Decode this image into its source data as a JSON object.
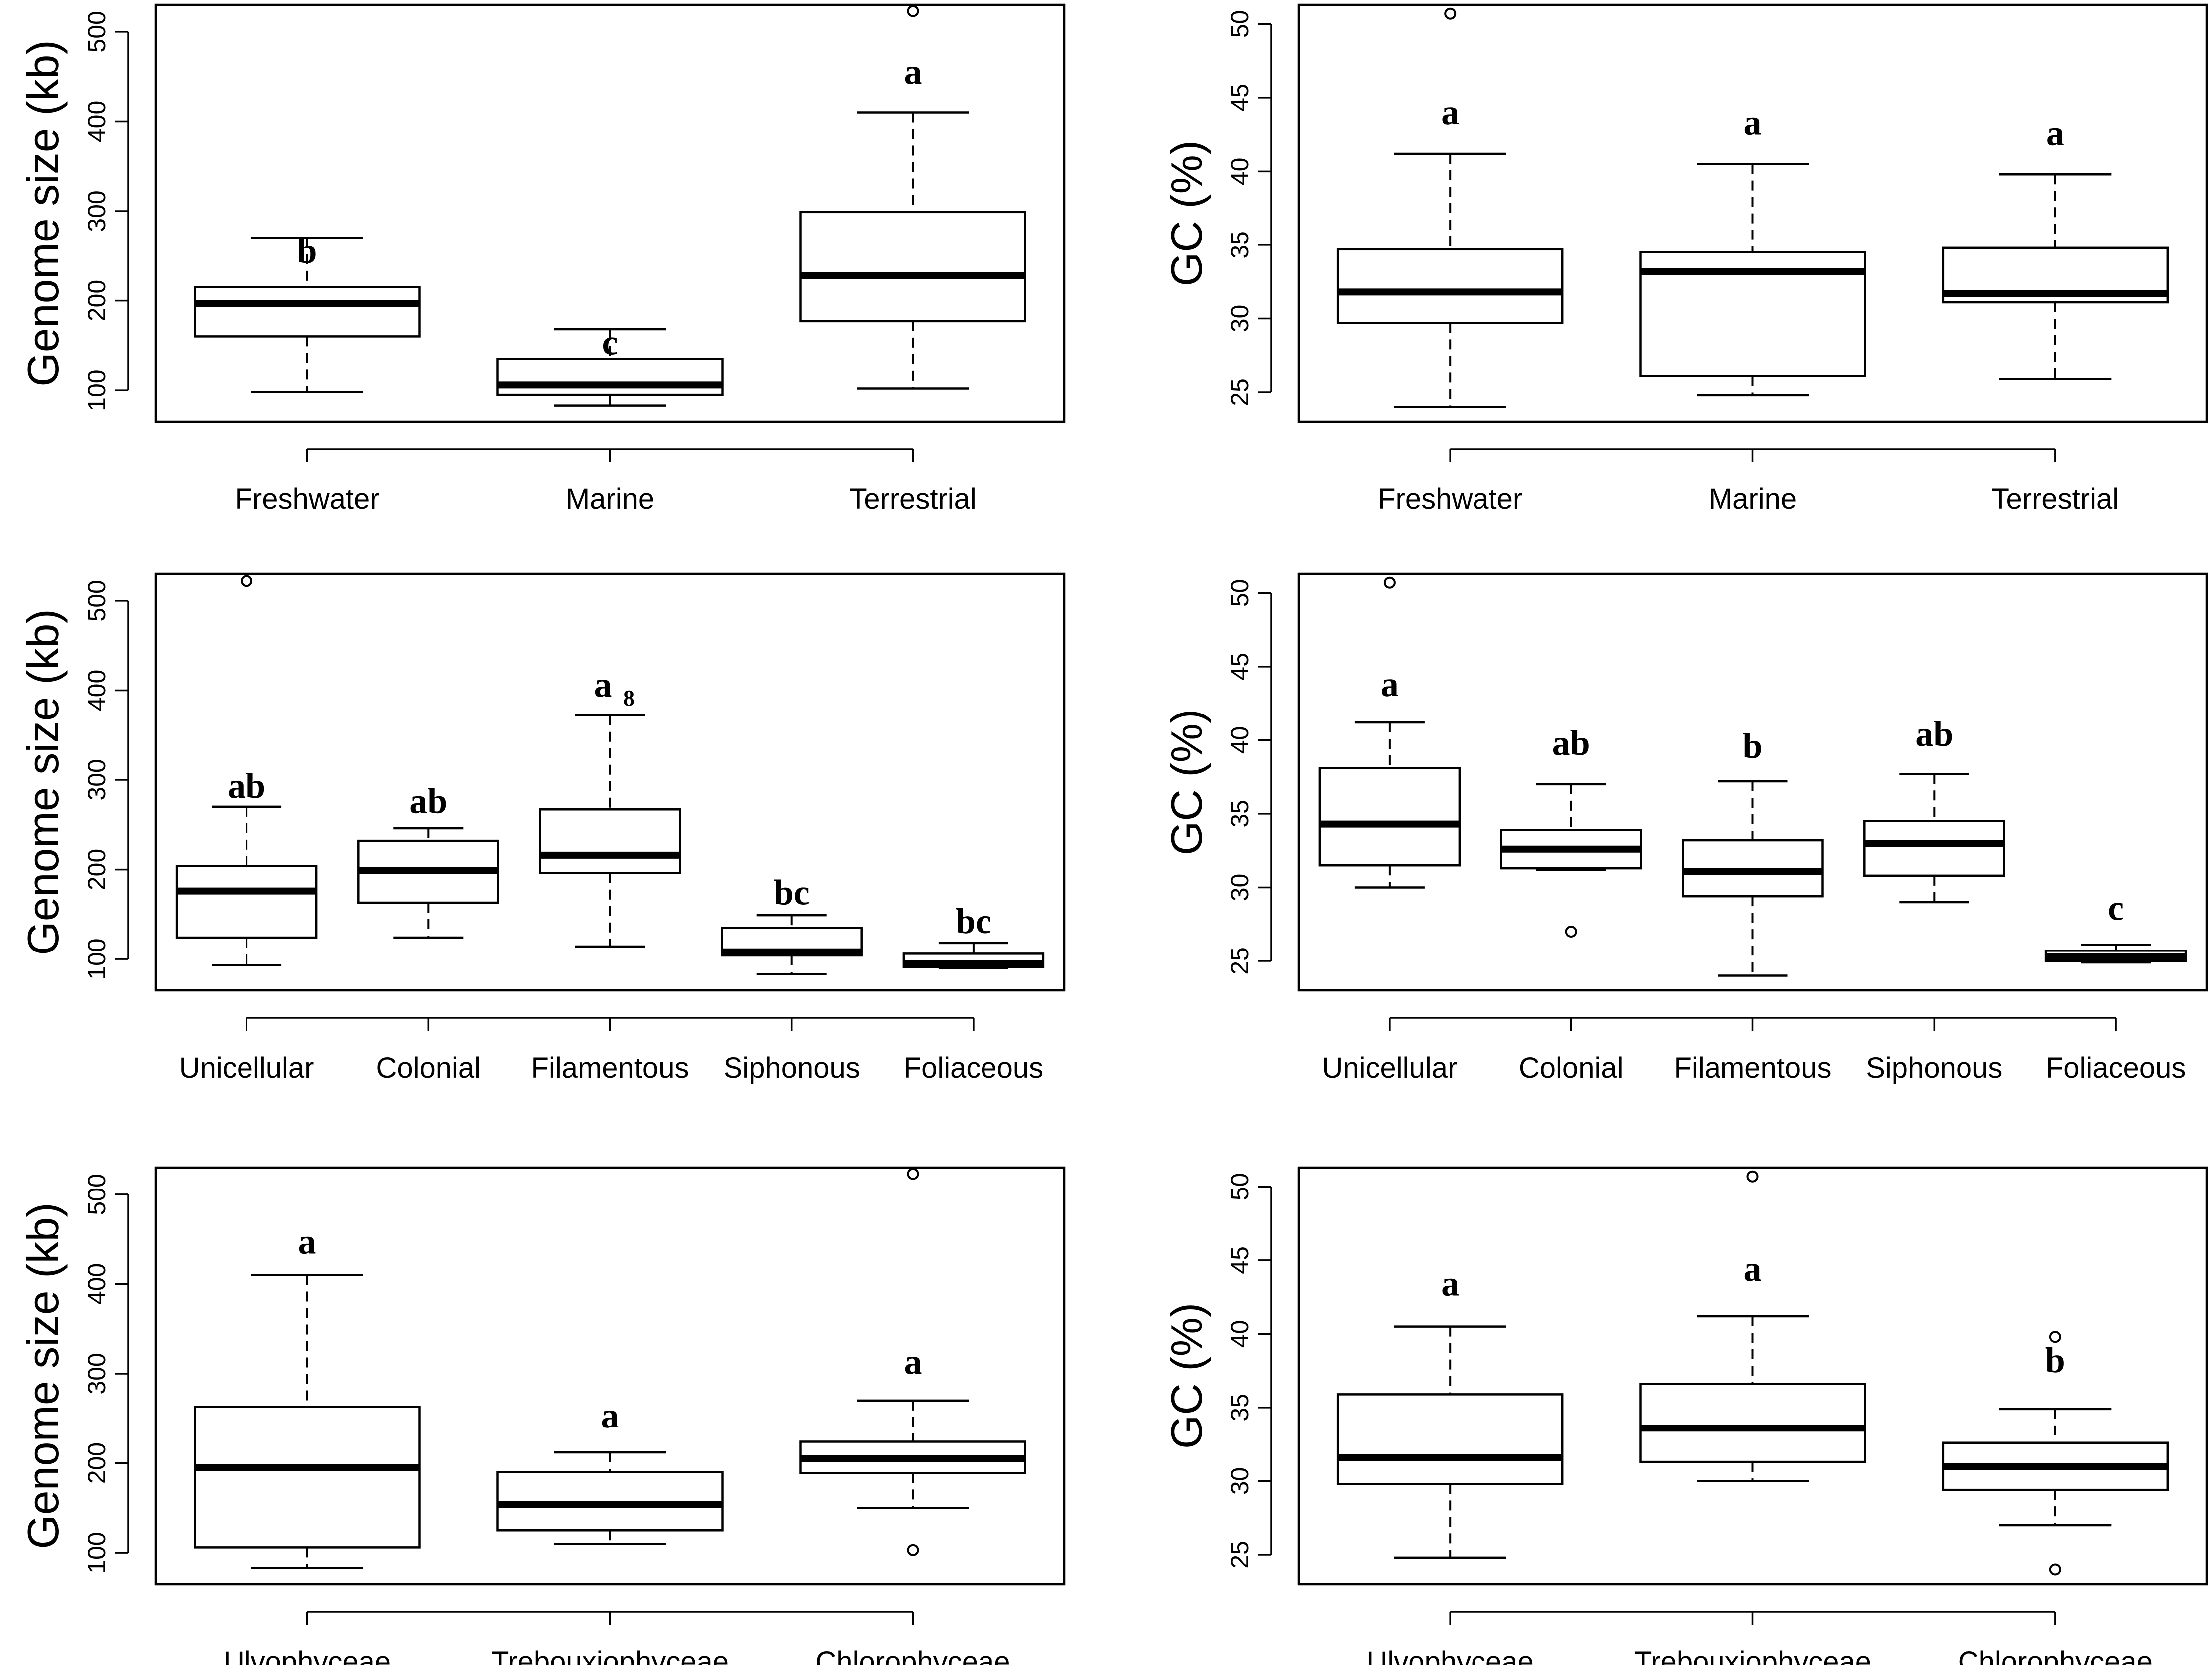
{
  "chart_data": [
    {
      "type": "box",
      "ylabel": "Genome size (kb)",
      "ylim": [
        65,
        530
      ],
      "yticks": [
        100,
        200,
        300,
        400,
        500
      ],
      "categories": [
        "Freshwater",
        "Marine",
        "Terrestrial"
      ],
      "boxes": [
        {
          "min": 98,
          "q1": 160,
          "median": 197,
          "q3": 215,
          "max": 270,
          "outliers": [],
          "letter": "b",
          "letter_y": 242
        },
        {
          "min": 83,
          "q1": 95,
          "median": 106,
          "q3": 135,
          "max": 168,
          "outliers": [],
          "letter": "c",
          "letter_y": 140
        },
        {
          "min": 102,
          "q1": 177,
          "median": 228,
          "q3": 299,
          "max": 410,
          "outliers": [
            523
          ],
          "letter": "a",
          "letter_y": 442
        }
      ]
    },
    {
      "type": "box",
      "ylabel": "GC (%)",
      "ylim": [
        23,
        51.3
      ],
      "yticks": [
        25,
        30,
        35,
        40,
        45,
        50
      ],
      "categories": [
        "Freshwater",
        "Marine",
        "Terrestrial"
      ],
      "boxes": [
        {
          "min": 24,
          "q1": 29.7,
          "median": 31.8,
          "q3": 34.7,
          "max": 41.2,
          "outliers": [
            50.7
          ],
          "letter": "a",
          "letter_y": 43.2
        },
        {
          "min": 24.8,
          "q1": 26.1,
          "median": 33.2,
          "q3": 34.5,
          "max": 40.5,
          "outliers": [],
          "letter": "a",
          "letter_y": 42.5
        },
        {
          "min": 25.9,
          "q1": 31.1,
          "median": 31.7,
          "q3": 34.8,
          "max": 39.8,
          "outliers": [],
          "letter": "a",
          "letter_y": 41.8
        }
      ]
    },
    {
      "type": "box",
      "ylabel": "Genome size (kb)",
      "ylim": [
        65,
        530
      ],
      "yticks": [
        100,
        200,
        300,
        400,
        500
      ],
      "categories": [
        "Unicellular",
        "Colonial",
        "Filamentous",
        "Siphonous",
        "Foliaceous"
      ],
      "boxes": [
        {
          "min": 93,
          "q1": 124,
          "median": 176,
          "q3": 204,
          "max": 270,
          "outliers": [
            522
          ],
          "letter": "ab",
          "letter_y": 280
        },
        {
          "min": 124,
          "q1": 163,
          "median": 199,
          "q3": 232,
          "max": 246,
          "outliers": [],
          "letter": "ab",
          "letter_y": 263
        },
        {
          "min": 114,
          "q1": 196,
          "median": 216,
          "q3": 267,
          "max": 372,
          "outliers": [],
          "letter": "a",
          "letter_sub": "8",
          "letter_y": 393
        },
        {
          "min": 83,
          "q1": 104,
          "median": 108,
          "q3": 135,
          "max": 149,
          "outliers": [],
          "letter": "bc",
          "letter_y": 161
        },
        {
          "min": 90,
          "q1": 91,
          "median": 95,
          "q3": 106,
          "max": 118,
          "outliers": [],
          "letter": "bc",
          "letter_y": 129
        }
      ]
    },
    {
      "type": "box",
      "ylabel": "GC (%)",
      "ylim": [
        23,
        51.3
      ],
      "yticks": [
        25,
        30,
        35,
        40,
        45,
        50
      ],
      "categories": [
        "Unicellular",
        "Colonial",
        "Filamentous",
        "Siphonous",
        "Foliaceous"
      ],
      "boxes": [
        {
          "min": 30,
          "q1": 31.5,
          "median": 34.3,
          "q3": 38.1,
          "max": 41.2,
          "outliers": [
            50.7
          ],
          "letter": "a",
          "letter_y": 43.0
        },
        {
          "min": 31.2,
          "q1": 31.3,
          "median": 32.6,
          "q3": 33.9,
          "max": 37,
          "outliers": [
            27
          ],
          "letter": "ab",
          "letter_y": 39.0
        },
        {
          "min": 24,
          "q1": 29.4,
          "median": 31.1,
          "q3": 33.2,
          "max": 37.2,
          "outliers": [],
          "letter": "b",
          "letter_y": 38.8
        },
        {
          "min": 29,
          "q1": 30.8,
          "median": 33,
          "q3": 34.5,
          "max": 37.7,
          "outliers": [],
          "letter": "ab",
          "letter_y": 39.6
        },
        {
          "min": 24.9,
          "q1": 25,
          "median": 25.3,
          "q3": 25.7,
          "max": 26.1,
          "outliers": [],
          "letter": "c",
          "letter_y": 27.8
        }
      ]
    },
    {
      "type": "box",
      "ylabel": "Genome size (kb)",
      "ylim": [
        65,
        530
      ],
      "yticks": [
        100,
        200,
        300,
        400,
        500
      ],
      "categories": [
        "Ulvophyceae",
        "Trebouxiophyceae",
        "Chlorophyceae"
      ],
      "boxes": [
        {
          "min": 83,
          "q1": 106,
          "median": 195,
          "q3": 263,
          "max": 410,
          "outliers": [],
          "letter": "a",
          "letter_y": 434
        },
        {
          "min": 110,
          "q1": 125,
          "median": 154,
          "q3": 190,
          "max": 212,
          "outliers": [],
          "letter": "a",
          "letter_y": 240
        },
        {
          "min": 150,
          "q1": 189,
          "median": 205,
          "q3": 224,
          "max": 270,
          "outliers": [
            523,
            103
          ],
          "letter": "a",
          "letter_y": 300
        }
      ]
    },
    {
      "type": "box",
      "ylabel": "GC (%)",
      "ylim": [
        23,
        51.3
      ],
      "yticks": [
        25,
        30,
        35,
        40,
        45,
        50
      ],
      "categories": [
        "Ulvophyceae",
        "Trebouxiophyceae",
        "Chlorophyceae"
      ],
      "boxes": [
        {
          "min": 24.8,
          "q1": 29.8,
          "median": 31.6,
          "q3": 35.9,
          "max": 40.5,
          "outliers": [],
          "letter": "a",
          "letter_y": 42.6
        },
        {
          "min": 30,
          "q1": 31.3,
          "median": 33.6,
          "q3": 36.6,
          "max": 41.2,
          "outliers": [
            50.7
          ],
          "letter": "a",
          "letter_y": 43.6
        },
        {
          "min": 27,
          "q1": 29.4,
          "median": 31,
          "q3": 32.6,
          "max": 34.9,
          "outliers": [
            39.8,
            24
          ],
          "letter": "b",
          "letter_y": 37.4
        }
      ]
    }
  ]
}
